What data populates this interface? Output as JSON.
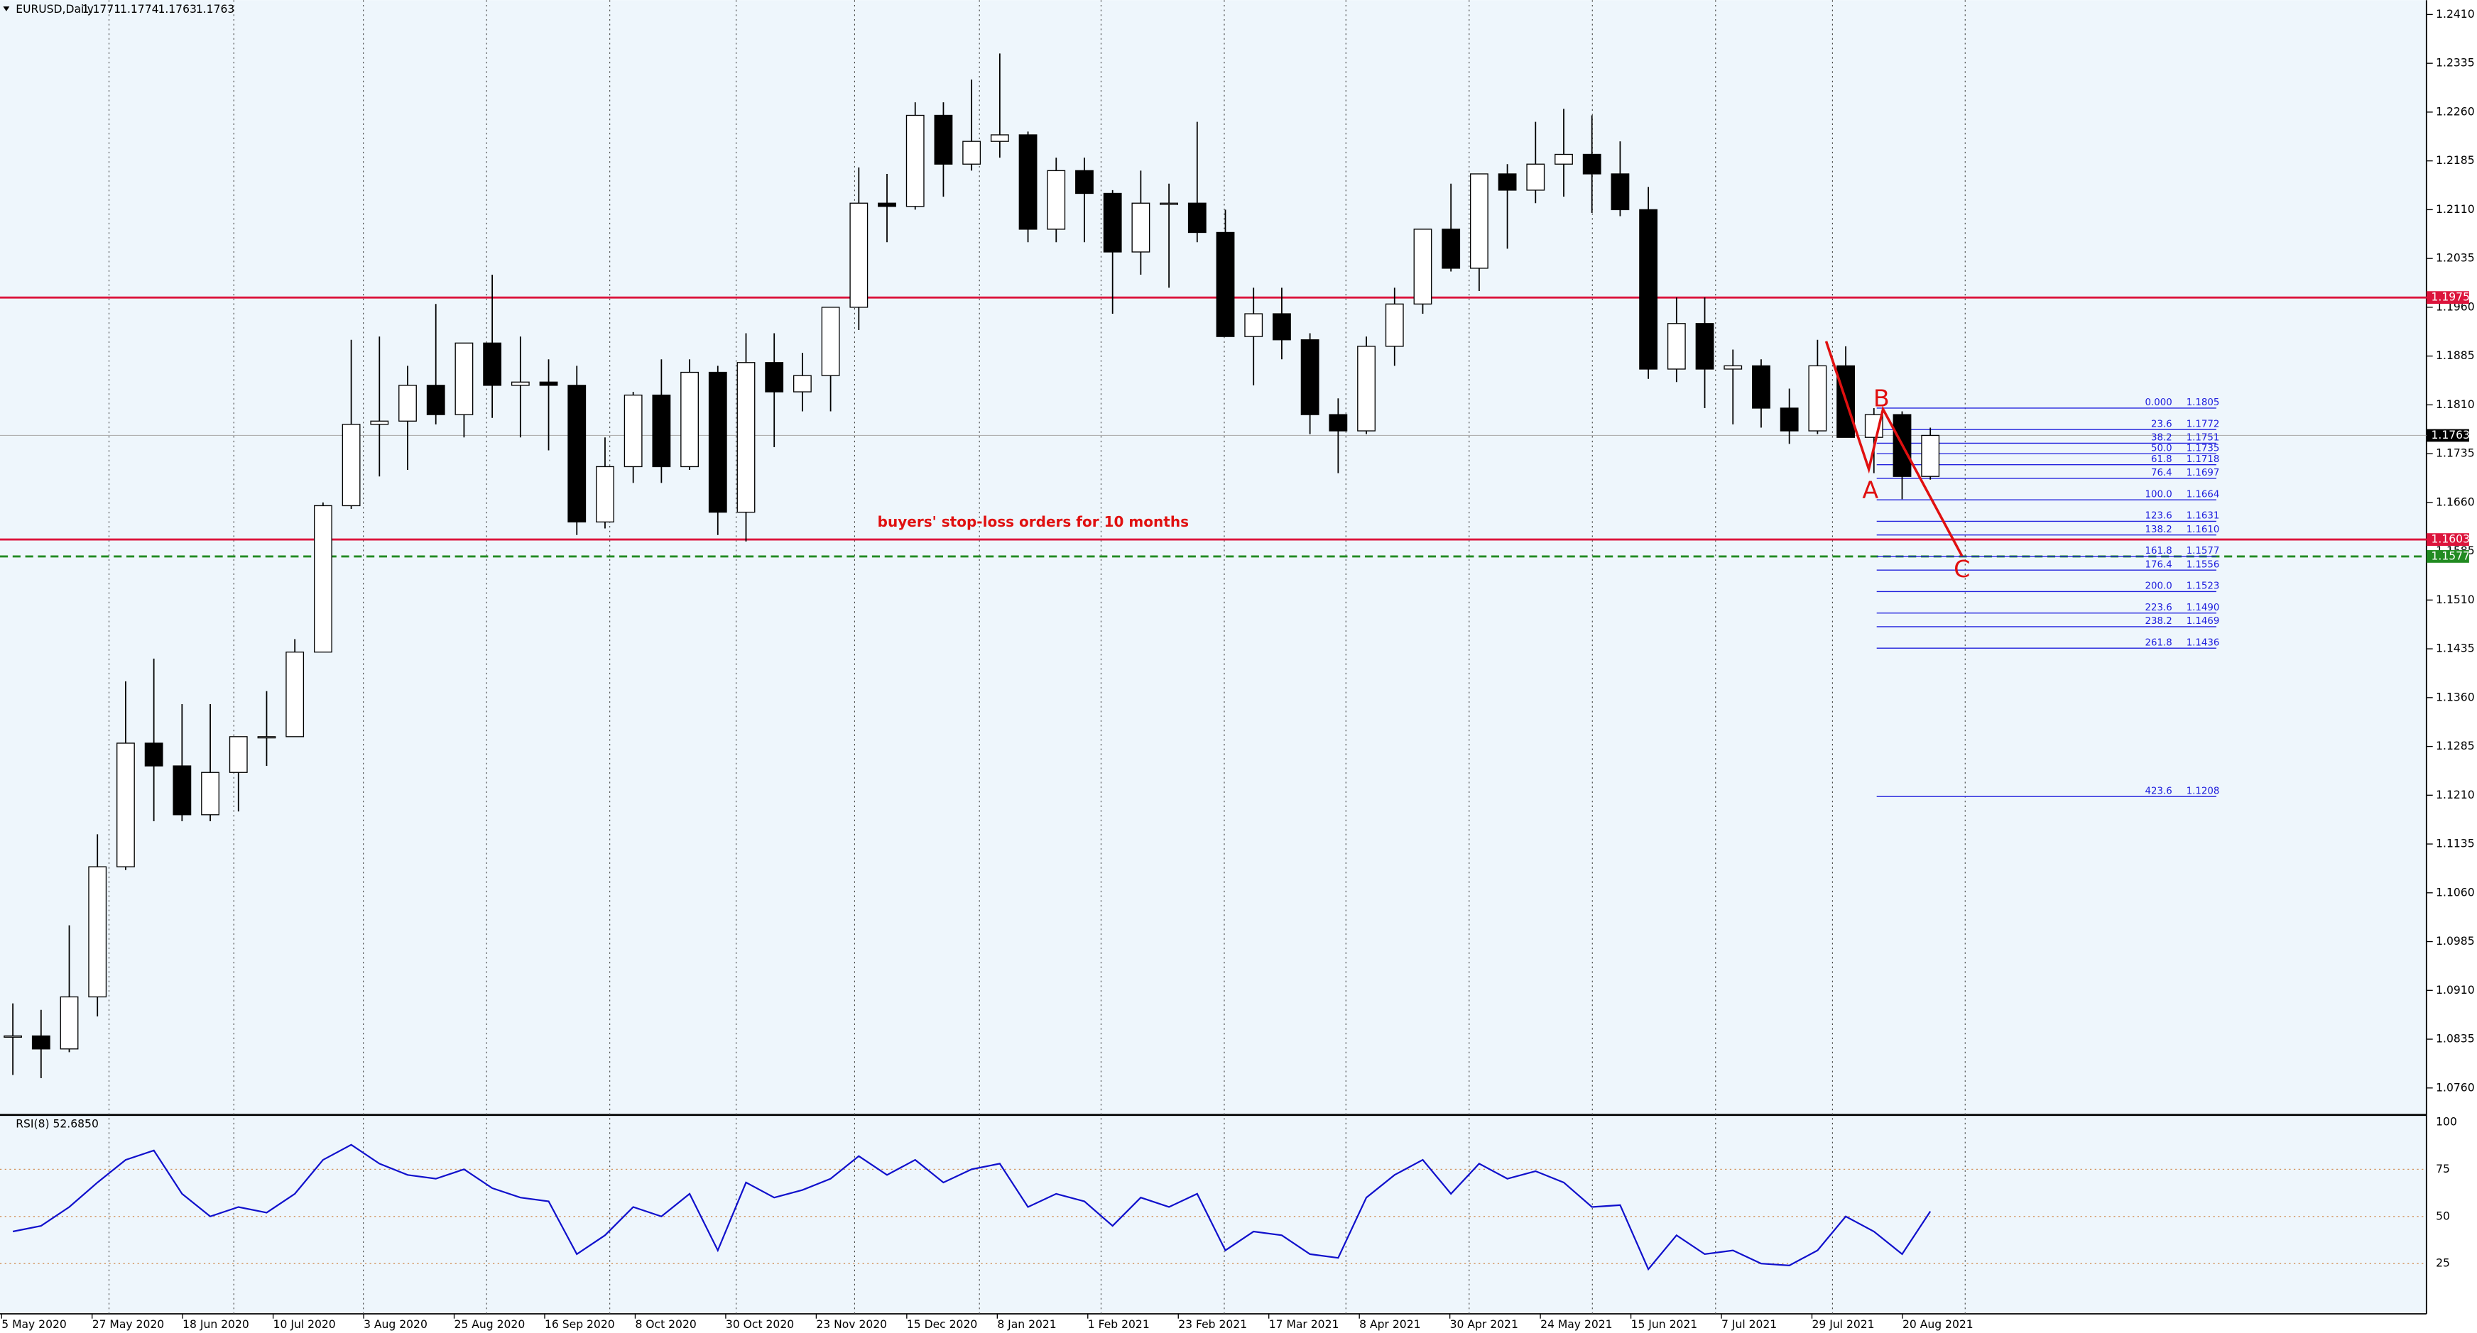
{
  "chart_data": [
    {
      "type": "candlestick",
      "title": "EURUSD,Daily",
      "quote": [
        1.1771,
        1.1774,
        1.1763,
        1.1763
      ],
      "ohlc": [
        [
          1.084,
          1.089,
          1.078,
          1.084
        ],
        [
          1.084,
          1.088,
          1.0775,
          1.082
        ],
        [
          1.082,
          1.101,
          1.0815,
          1.09
        ],
        [
          1.09,
          1.115,
          1.087,
          1.11
        ],
        [
          1.11,
          1.1385,
          1.1095,
          1.129
        ],
        [
          1.129,
          1.142,
          1.117,
          1.1255
        ],
        [
          1.1255,
          1.135,
          1.117,
          1.118
        ],
        [
          1.118,
          1.135,
          1.117,
          1.1245
        ],
        [
          1.1245,
          1.13,
          1.1185,
          1.13
        ],
        [
          1.13,
          1.137,
          1.1255,
          1.13
        ],
        [
          1.13,
          1.145,
          1.13,
          1.143
        ],
        [
          1.143,
          1.166,
          1.143,
          1.1655
        ],
        [
          1.1655,
          1.191,
          1.165,
          1.178
        ],
        [
          1.178,
          1.1915,
          1.17,
          1.1785
        ],
        [
          1.1785,
          1.187,
          1.171,
          1.184
        ],
        [
          1.184,
          1.1965,
          1.178,
          1.1795
        ],
        [
          1.1795,
          1.19,
          1.176,
          1.1905
        ],
        [
          1.1905,
          1.201,
          1.179,
          1.184
        ],
        [
          1.184,
          1.1915,
          1.176,
          1.1845
        ],
        [
          1.1845,
          1.188,
          1.174,
          1.184
        ],
        [
          1.184,
          1.187,
          1.161,
          1.163
        ],
        [
          1.163,
          1.176,
          1.162,
          1.1715
        ],
        [
          1.1715,
          1.183,
          1.169,
          1.1825
        ],
        [
          1.1825,
          1.188,
          1.169,
          1.1715
        ],
        [
          1.1715,
          1.188,
          1.171,
          1.186
        ],
        [
          1.186,
          1.187,
          1.161,
          1.1645
        ],
        [
          1.1645,
          1.192,
          1.16,
          1.1875
        ],
        [
          1.1875,
          1.192,
          1.1745,
          1.183
        ],
        [
          1.183,
          1.189,
          1.18,
          1.1855
        ],
        [
          1.1855,
          1.196,
          1.18,
          1.196
        ],
        [
          1.196,
          1.2175,
          1.1925,
          1.212
        ],
        [
          1.212,
          1.2165,
          1.206,
          1.2115
        ],
        [
          1.2115,
          1.2275,
          1.211,
          1.2255
        ],
        [
          1.2255,
          1.2275,
          1.213,
          1.218
        ],
        [
          1.218,
          1.231,
          1.217,
          1.2215
        ],
        [
          1.2215,
          1.235,
          1.219,
          1.2225
        ],
        [
          1.2225,
          1.223,
          1.206,
          1.208
        ],
        [
          1.208,
          1.219,
          1.206,
          1.217
        ],
        [
          1.217,
          1.219,
          1.206,
          1.2135
        ],
        [
          1.2135,
          1.214,
          1.195,
          1.2045
        ],
        [
          1.2045,
          1.217,
          1.201,
          1.212
        ],
        [
          1.212,
          1.215,
          1.199,
          1.212
        ],
        [
          1.212,
          1.2245,
          1.206,
          1.2075
        ],
        [
          1.2075,
          1.211,
          1.192,
          1.1915
        ],
        [
          1.1915,
          1.199,
          1.184,
          1.195
        ],
        [
          1.195,
          1.199,
          1.188,
          1.191
        ],
        [
          1.191,
          1.192,
          1.1765,
          1.1795
        ],
        [
          1.1795,
          1.182,
          1.1705,
          1.177
        ],
        [
          1.177,
          1.1915,
          1.1765,
          1.19
        ],
        [
          1.19,
          1.199,
          1.187,
          1.1965
        ],
        [
          1.1965,
          1.208,
          1.195,
          1.208
        ],
        [
          1.208,
          1.215,
          1.2015,
          1.202
        ],
        [
          1.202,
          1.2165,
          1.1985,
          1.2165
        ],
        [
          1.2165,
          1.218,
          1.205,
          1.214
        ],
        [
          1.214,
          1.2245,
          1.212,
          1.218
        ],
        [
          1.218,
          1.2265,
          1.213,
          1.2195
        ],
        [
          1.2195,
          1.2255,
          1.2105,
          1.2165
        ],
        [
          1.2165,
          1.2215,
          1.21,
          1.211
        ],
        [
          1.211,
          1.2145,
          1.185,
          1.1865
        ],
        [
          1.1865,
          1.1975,
          1.1845,
          1.1935
        ],
        [
          1.1935,
          1.1975,
          1.1805,
          1.1865
        ],
        [
          1.1865,
          1.1895,
          1.178,
          1.187
        ],
        [
          1.187,
          1.188,
          1.1775,
          1.1805
        ],
        [
          1.1805,
          1.1835,
          1.175,
          1.177
        ],
        [
          1.177,
          1.191,
          1.1765,
          1.187
        ],
        [
          1.187,
          1.19,
          1.1765,
          1.176
        ],
        [
          1.176,
          1.1805,
          1.1705,
          1.1795
        ],
        [
          1.1795,
          1.18,
          1.1665,
          1.17
        ],
        [
          1.17,
          1.1775,
          1.1695,
          1.1763
        ]
      ],
      "ylim": [
        1.0721,
        1.2432
      ],
      "yticks": [
        {
          "value": 1.241,
          "label": "1.2410"
        },
        {
          "value": 1.2335,
          "label": "1.2335"
        },
        {
          "value": 1.226,
          "label": "1.2260"
        },
        {
          "value": 1.2185,
          "label": "1.2185"
        },
        {
          "value": 1.211,
          "label": "1.2110"
        },
        {
          "value": 1.2035,
          "label": "1.2035"
        },
        {
          "value": 1.196,
          "label": "1.1960"
        },
        {
          "value": 1.1885,
          "label": "1.1885"
        },
        {
          "value": 1.181,
          "label": "1.1810"
        },
        {
          "value": 1.1735,
          "label": "1.1735"
        },
        {
          "value": 1.166,
          "label": "1.1660"
        },
        {
          "value": 1.1585,
          "label": "1.1585"
        },
        {
          "value": 1.151,
          "label": "1.1510"
        },
        {
          "value": 1.1435,
          "label": "1.1435"
        },
        {
          "value": 1.136,
          "label": "1.1360"
        },
        {
          "value": 1.1285,
          "label": "1.1285"
        },
        {
          "value": 1.121,
          "label": "1.1210"
        },
        {
          "value": 1.1135,
          "label": "1.1135"
        },
        {
          "value": 1.106,
          "label": "1.1060"
        },
        {
          "value": 1.0985,
          "label": "1.0985"
        },
        {
          "value": 1.091,
          "label": "1.0910"
        },
        {
          "value": 1.0835,
          "label": "1.0835"
        },
        {
          "value": 1.076,
          "label": "1.0760"
        }
      ],
      "xlabels": [
        "5 May 2020",
        "27 May 2020",
        "18 Jun 2020",
        "10 Jul 2020",
        "3 Aug 2020",
        "25 Aug 2020",
        "16 Sep 2020",
        "8 Oct 2020",
        "30 Oct 2020",
        "23 Nov 2020",
        "15 Dec 2020",
        "8 Jan 2021",
        "1 Feb 2021",
        "23 Feb 2021",
        "17 Mar 2021",
        "8 Apr 2021",
        "30 Apr 2021",
        "24 May 2021",
        "15 Jun 2021",
        "7 Jul 2021",
        "29 Jul 2021",
        "20 Aug 2021"
      ],
      "levels": [
        {
          "price": 1.1975,
          "color": "#dc143c",
          "style": "solid"
        },
        {
          "price": 1.1603,
          "color": "#dc143c",
          "style": "solid"
        },
        {
          "price": 1.1577,
          "color": "#228b22",
          "style": "dashed"
        },
        {
          "price": 1.1763,
          "color": "#000000",
          "style": "current"
        }
      ],
      "annotation": "buyers' stop-loss orders for 10 months",
      "wave_labels": [
        "A",
        "B",
        "C"
      ],
      "fib": [
        {
          "ratio": "0.000",
          "price": 1.1805
        },
        {
          "ratio": "23.6",
          "price": 1.1772
        },
        {
          "ratio": "38.2",
          "price": 1.1751
        },
        {
          "ratio": "50.0",
          "price": 1.1735
        },
        {
          "ratio": "61.8",
          "price": 1.1718
        },
        {
          "ratio": "76.4",
          "price": 1.1697
        },
        {
          "ratio": "100.0",
          "price": 1.1664
        },
        {
          "ratio": "123.6",
          "price": 1.1631
        },
        {
          "ratio": "138.2",
          "price": {
            "value": 1.161,
            "label": "1.1610"
          }
        },
        {
          "ratio": "161.8",
          "price": 1.1577
        },
        {
          "ratio": "176.4",
          "price": 1.1556
        },
        {
          "ratio": "200.0",
          "price": 1.1523
        },
        {
          "ratio": "223.6",
          "price": {
            "value": 1.149,
            "label": "1.1490"
          }
        },
        {
          "ratio": "238.2",
          "price": 1.1469
        },
        {
          "ratio": "261.8",
          "price": 1.1436
        },
        {
          "ratio": "423.6",
          "price": 1.1208
        }
      ]
    },
    {
      "type": "line",
      "title": "RSI(8) 52.6850",
      "color": "#1010cc",
      "values": [
        42,
        45,
        55,
        68,
        80,
        85,
        62,
        50,
        55,
        52,
        62,
        80,
        88,
        78,
        72,
        70,
        75,
        65,
        60,
        58,
        30,
        40,
        55,
        50,
        62,
        32,
        68,
        60,
        64,
        70,
        82,
        72,
        80,
        68,
        75,
        78,
        55,
        62,
        58,
        45,
        60,
        55,
        62,
        32,
        42,
        40,
        30,
        28,
        60,
        72,
        80,
        62,
        78,
        70,
        74,
        68,
        55,
        56,
        22,
        40,
        30,
        32,
        25,
        24,
        32,
        50,
        42,
        30,
        52.685
      ],
      "ylim": [
        0,
        103
      ],
      "yticks": [
        100,
        75,
        50,
        25
      ]
    }
  ]
}
